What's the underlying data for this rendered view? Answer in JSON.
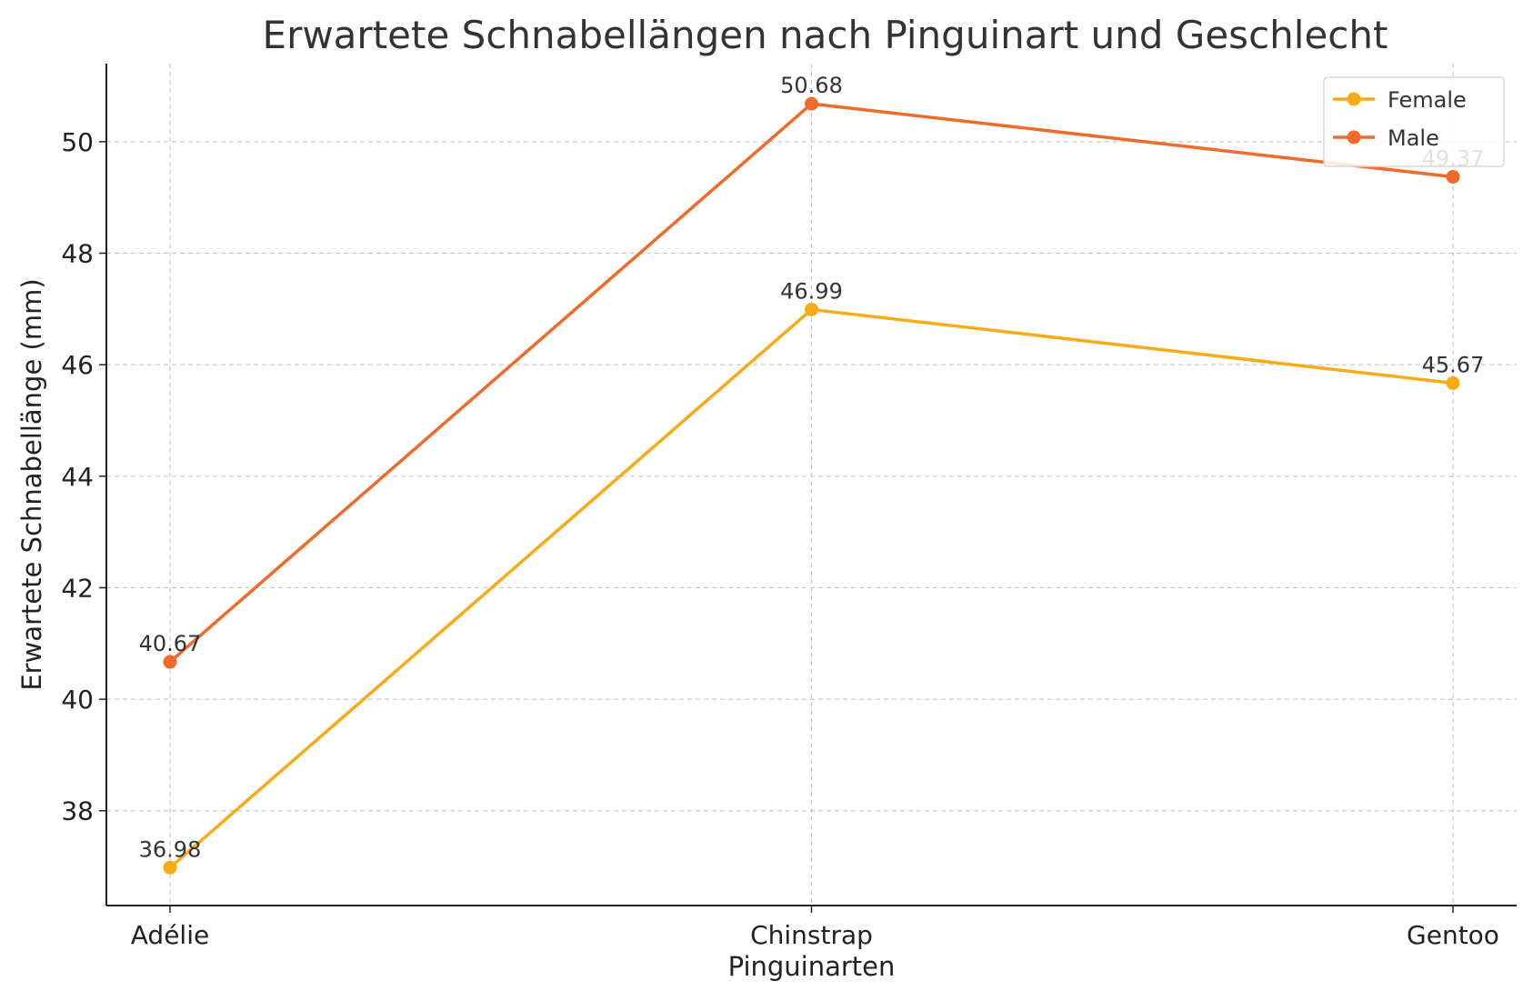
{
  "chart_data": {
    "type": "line",
    "title": "Erwartete Schnabellängen nach Pinguinart und Geschlecht",
    "xlabel": "Pinguinarten",
    "ylabel": "Erwartete Schnabellänge (mm)",
    "categories": [
      "Adélie",
      "Chinstrap",
      "Gentoo"
    ],
    "ylim": [
      36.3,
      51.4
    ],
    "yticks": [
      38,
      40,
      42,
      44,
      46,
      48,
      50
    ],
    "grid": true,
    "legend_position": "top-right",
    "series": [
      {
        "name": "Female",
        "color": "#f7ab17",
        "values": [
          36.98,
          46.99,
          45.67
        ],
        "labels": [
          "36.98",
          "46.99",
          "45.67"
        ]
      },
      {
        "name": "Male",
        "color": "#ef6a2b",
        "values": [
          40.67,
          50.68,
          49.37
        ],
        "labels": [
          "40.67",
          "50.68",
          "49.37"
        ]
      }
    ]
  }
}
